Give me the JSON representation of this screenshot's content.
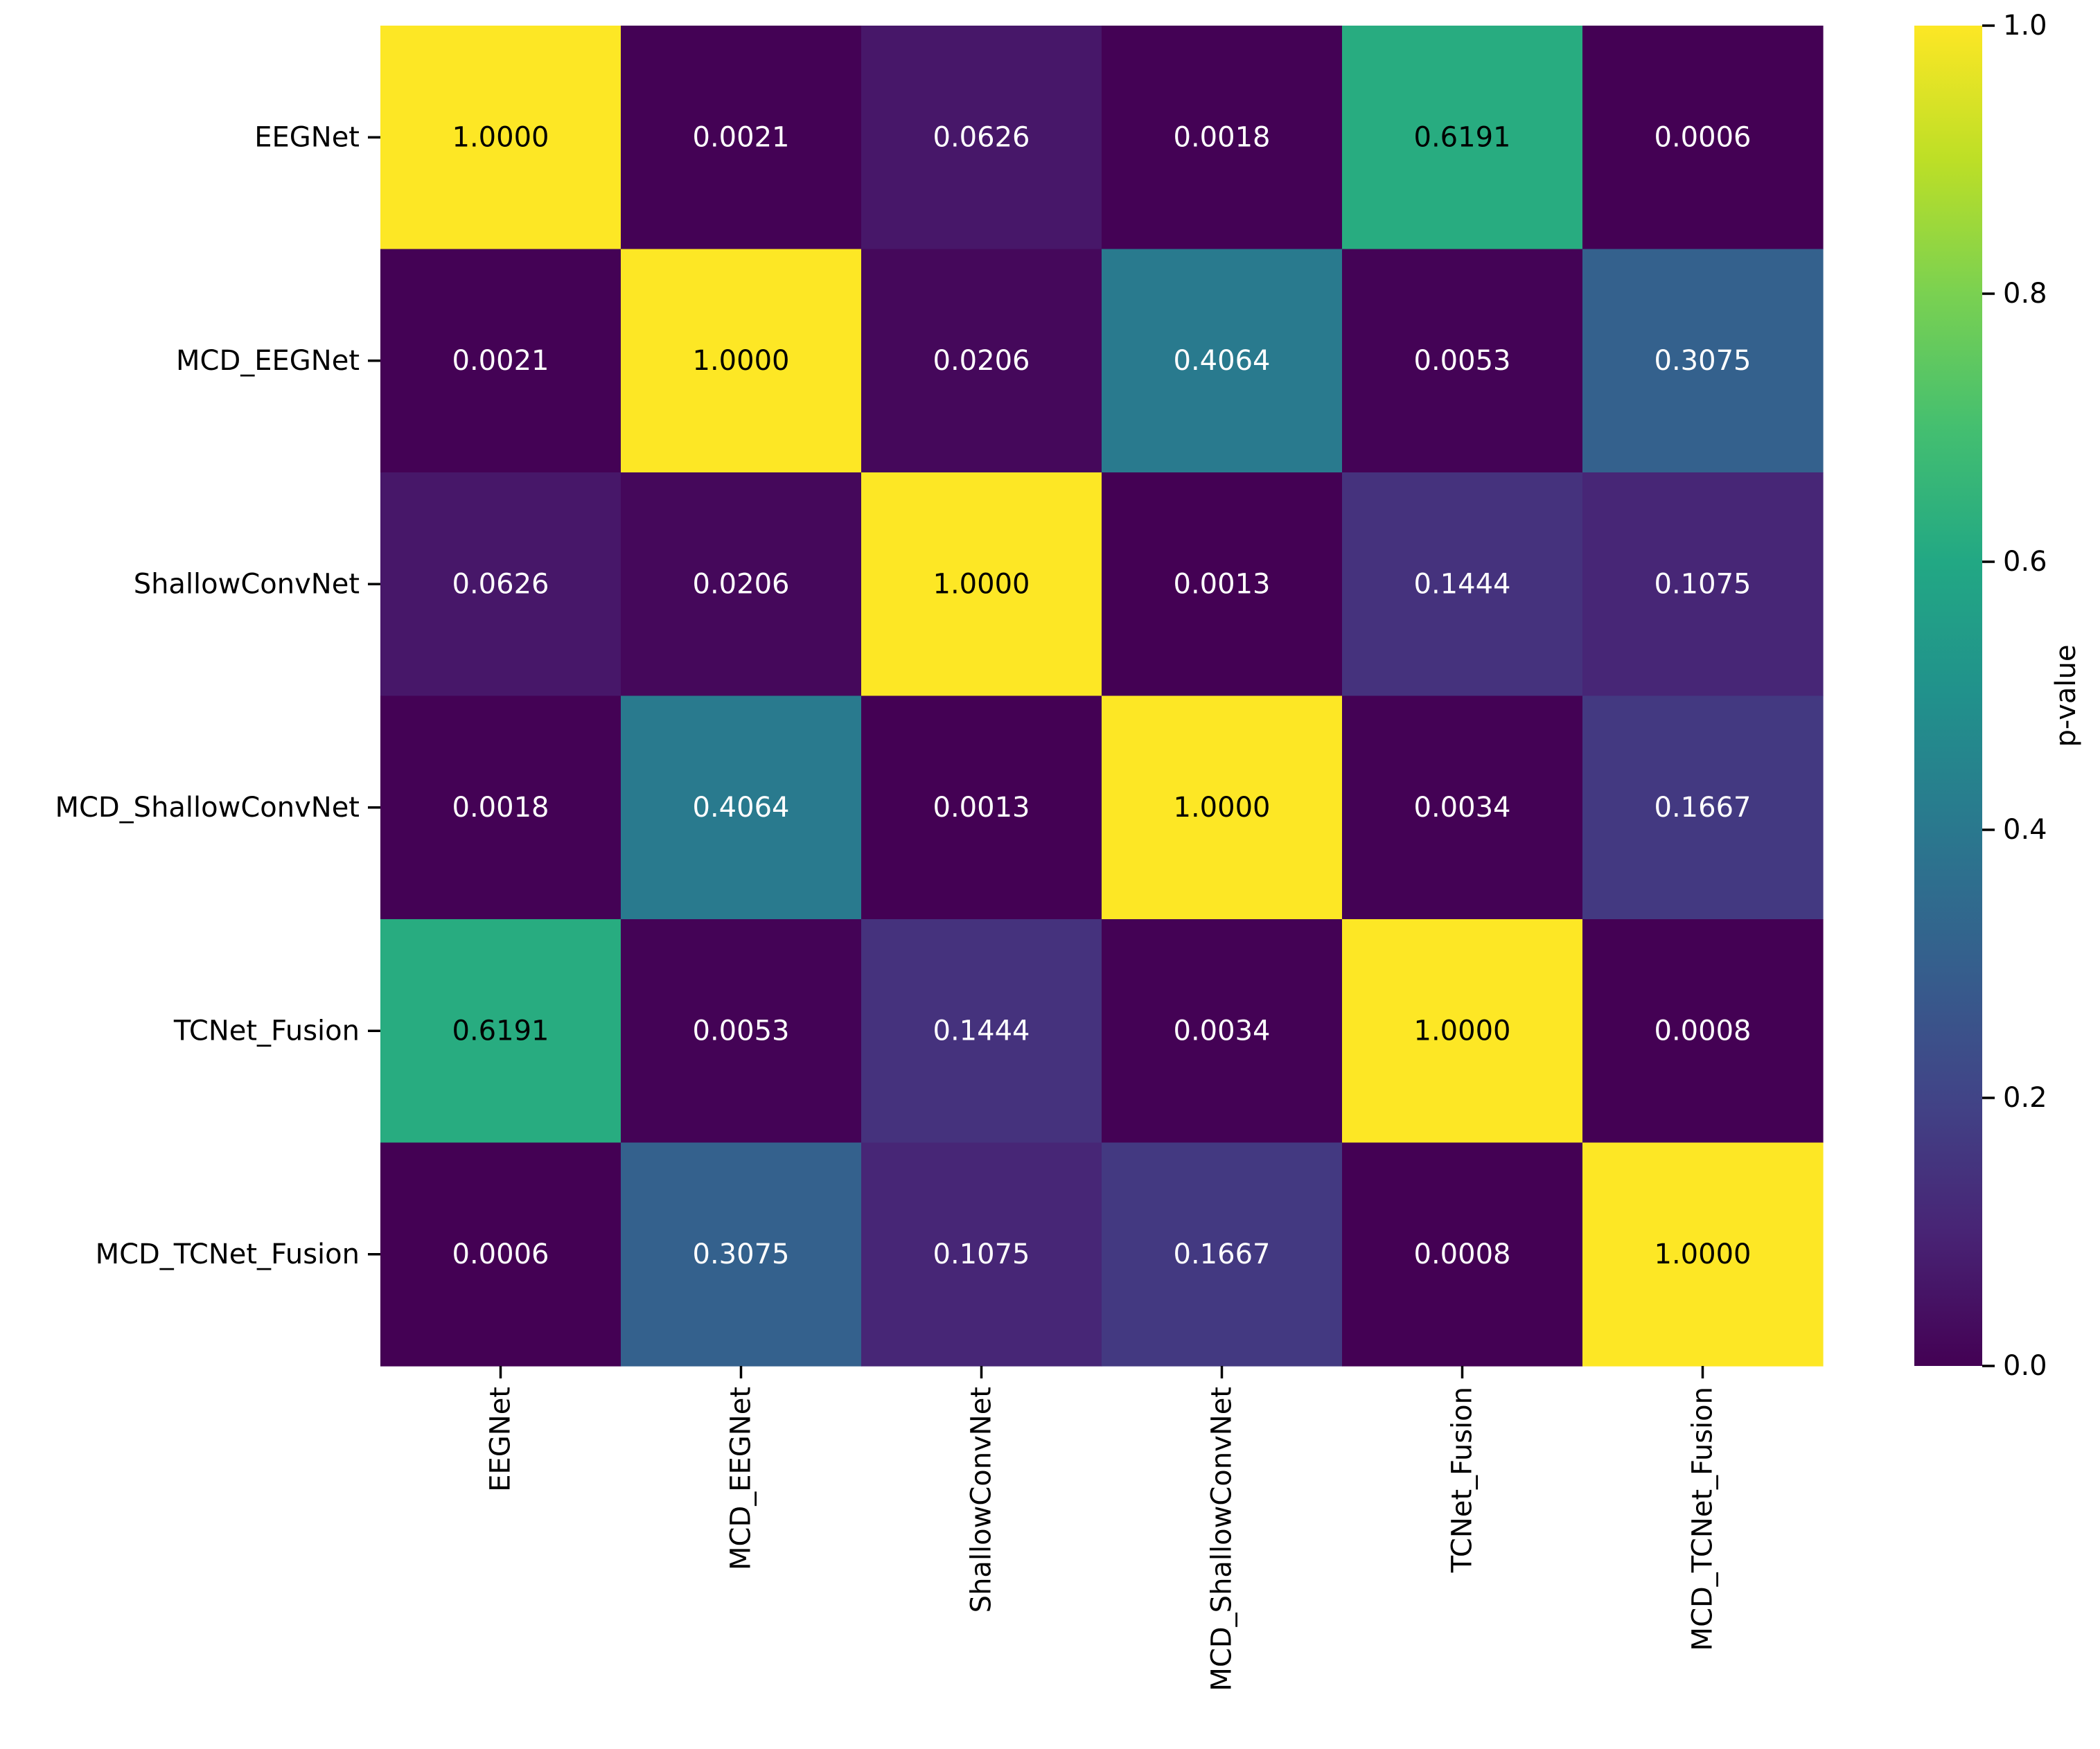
{
  "chart_data": {
    "type": "heatmap",
    "title": "",
    "xlabel": "",
    "ylabel": "",
    "row_labels": [
      "EEGNet",
      "MCD_EEGNet",
      "ShallowConvNet",
      "MCD_ShallowConvNet",
      "TCNet_Fusion",
      "MCD_TCNet_Fusion"
    ],
    "col_labels": [
      "EEGNet",
      "MCD_EEGNet",
      "ShallowConvNet",
      "MCD_ShallowConvNet",
      "TCNet_Fusion",
      "MCD_TCNet_Fusion"
    ],
    "values": [
      [
        1.0,
        0.0021,
        0.0626,
        0.0018,
        0.6191,
        0.0006
      ],
      [
        0.0021,
        1.0,
        0.0206,
        0.4064,
        0.0053,
        0.3075
      ],
      [
        0.0626,
        0.0206,
        1.0,
        0.0013,
        0.1444,
        0.1075
      ],
      [
        0.0018,
        0.4064,
        0.0013,
        1.0,
        0.0034,
        0.1667
      ],
      [
        0.6191,
        0.0053,
        0.1444,
        0.0034,
        1.0,
        0.0008
      ],
      [
        0.0006,
        0.3075,
        0.1075,
        0.1667,
        0.0008,
        1.0
      ]
    ],
    "value_format_decimals": 4,
    "colormap": "viridis",
    "colorbar": {
      "label": "p-value",
      "range": [
        0.0,
        1.0
      ],
      "ticks": [
        0.0,
        0.2,
        0.4,
        0.6,
        0.8,
        1.0
      ],
      "tick_labels": [
        "0.0",
        "0.2",
        "0.4",
        "0.6",
        "0.8",
        "1.0"
      ]
    }
  },
  "colors": {
    "viridis_stops": [
      "#440154",
      "#482475",
      "#414487",
      "#355f8d",
      "#2a788e",
      "#21918c",
      "#22a884",
      "#44bf70",
      "#7ad151",
      "#bddf26",
      "#fde725"
    ],
    "text_dark": "#000000",
    "text_light": "#ffffff"
  }
}
